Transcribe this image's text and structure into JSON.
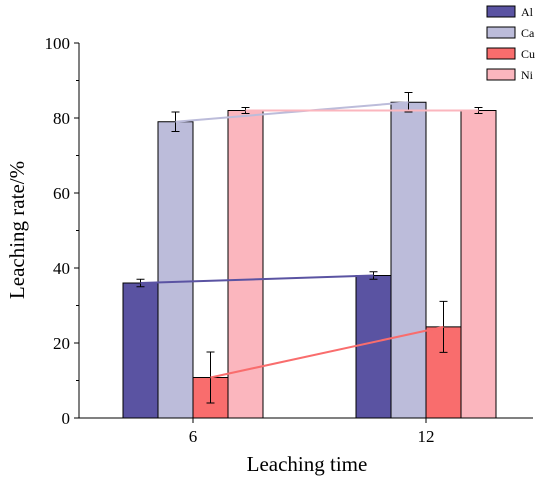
{
  "chart_data": {
    "type": "bar",
    "xlabel": "Leaching time",
    "ylabel": "Leaching rate/%",
    "ylim": [
      0,
      100
    ],
    "yticks": [
      "0",
      "20",
      "40",
      "60",
      "80",
      "100"
    ],
    "categories": [
      "6",
      "12"
    ],
    "series": [
      {
        "name": "Al",
        "color": "#5a53a2",
        "values": [
          36.0,
          38.0
        ],
        "errors": [
          1.0,
          1.0
        ]
      },
      {
        "name": "Ca",
        "color": "#bcbcda",
        "values": [
          79.0,
          84.2
        ],
        "errors": [
          2.6,
          2.6
        ]
      },
      {
        "name": "Cu",
        "color": "#f96d6d",
        "values": [
          10.8,
          24.3
        ],
        "errors": [
          6.8,
          6.8
        ]
      },
      {
        "name": "Ni",
        "color": "#fbb6be",
        "values": [
          82.0,
          82.0
        ],
        "errors": [
          0.8,
          0.8
        ]
      }
    ],
    "connecting_lines": true,
    "grid": false,
    "legend_position": "top-right"
  }
}
